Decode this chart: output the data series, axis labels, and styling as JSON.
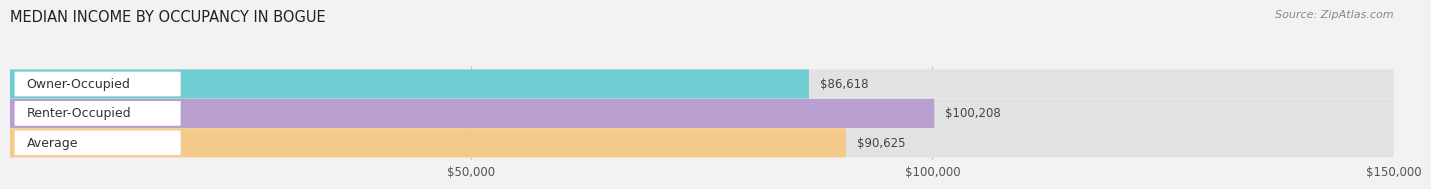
{
  "title": "MEDIAN INCOME BY OCCUPANCY IN BOGUE",
  "source": "Source: ZipAtlas.com",
  "categories": [
    "Owner-Occupied",
    "Renter-Occupied",
    "Average"
  ],
  "values": [
    86618,
    100208,
    90625
  ],
  "bar_colors": [
    "#6dcdd0",
    "#b89fcf",
    "#f5c98a"
  ],
  "value_labels": [
    "$86,618",
    "$100,208",
    "$90,625"
  ],
  "xlim": [
    0,
    150000
  ],
  "xticks": [
    50000,
    100000,
    150000
  ],
  "xticklabels": [
    "$50,000",
    "$100,000",
    "$150,000"
  ],
  "background_color": "#f2f2f2",
  "bar_bg_color": "#e2e2e2",
  "label_bg_color": "#ffffff",
  "title_fontsize": 10.5,
  "source_fontsize": 8,
  "label_fontsize": 9,
  "value_fontsize": 8.5,
  "tick_fontsize": 8.5,
  "bar_height": 0.52
}
